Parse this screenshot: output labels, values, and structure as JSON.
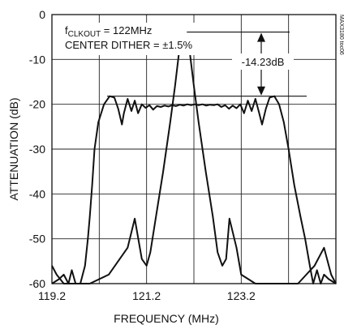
{
  "chart_data": {
    "type": "line",
    "title": "",
    "xlabel": "FREQUENCY (MHz)",
    "ylabel": "ATTENUATION (dB)",
    "xlim": [
      119.2,
      125.2
    ],
    "ylim": [
      -60,
      0
    ],
    "grid": true,
    "x_ticks": [
      "119.2",
      "121.2",
      "123.2"
    ],
    "y_ticks": [
      "0",
      "-10",
      "-20",
      "-30",
      "-40",
      "-50",
      "-60"
    ],
    "series": [
      {
        "x": [
          119.2,
          119.35,
          119.45,
          119.55,
          119.62,
          119.7,
          119.8,
          119.9,
          119.96,
          120.0,
          120.05,
          120.1,
          120.18,
          120.3,
          120.42,
          120.52,
          120.6,
          120.68,
          120.72,
          120.8,
          120.88,
          120.95,
          121.02,
          121.1,
          121.18,
          121.26,
          121.34,
          121.42,
          121.5,
          121.58,
          121.66,
          121.74,
          121.82,
          121.9,
          121.98,
          122.06,
          122.14,
          122.22,
          122.3,
          122.38,
          122.46,
          122.54,
          122.62,
          122.7,
          122.78,
          122.86,
          122.94,
          123.02,
          123.1,
          123.18,
          123.26,
          123.34,
          123.42,
          123.5,
          123.58,
          123.64,
          123.72,
          123.8,
          123.9,
          124.0,
          124.1,
          124.2,
          124.32,
          124.45,
          124.55,
          124.65,
          124.72,
          124.8,
          124.88,
          124.95,
          125.05,
          125.2
        ],
        "y": [
          -60,
          -59,
          -58,
          -60,
          -57,
          -60,
          -60,
          -56,
          -50,
          -45,
          -38,
          -30,
          -24,
          -20,
          -18.2,
          -18.5,
          -21,
          -24.5,
          -22,
          -18.8,
          -21.5,
          -19.2,
          -22,
          -20,
          -20.8,
          -20.2,
          -21.2,
          -20.4,
          -20.6,
          -20.3,
          -20.5,
          -20.2,
          -20.4,
          -20.1,
          -20.3,
          -20.0,
          -20.2,
          -20.0,
          -20.2,
          -20.0,
          -20.3,
          -20.1,
          -20.2,
          -20.0,
          -20.6,
          -20.2,
          -21.0,
          -20.3,
          -20.9,
          -20.0,
          -22,
          -19.2,
          -21.5,
          -18.8,
          -22,
          -24.5,
          -21,
          -18.5,
          -18.2,
          -20,
          -24,
          -30,
          -38,
          -45,
          -50,
          -56,
          -60,
          -57,
          -60,
          -58,
          -59,
          -60
        ]
      },
      {
        "x": [
          119.2,
          119.3,
          119.45,
          119.65,
          120.0,
          120.4,
          120.8,
          120.95,
          121.1,
          121.2,
          121.28,
          121.4,
          121.55,
          121.7,
          121.8,
          121.88,
          121.95,
          122.0,
          122.05,
          122.12,
          122.2,
          122.3,
          122.45,
          122.6,
          122.7,
          122.8,
          122.88,
          122.95,
          123.1,
          123.2,
          123.5,
          124.0,
          124.4,
          124.75,
          124.95,
          125.1,
          125.2
        ],
        "y": [
          -56,
          -58,
          -60,
          -60,
          -60,
          -58,
          -52,
          -45.5,
          -54.5,
          -56,
          -53,
          -45,
          -35,
          -24,
          -16,
          -9,
          -4,
          -3.9,
          -4,
          -9,
          -16,
          -24,
          -35,
          -45,
          -53,
          -56,
          -54.5,
          -45.5,
          -52,
          -58,
          -60,
          -60,
          -60,
          -56,
          -52,
          -58,
          -60
        ]
      }
    ],
    "annotations": [
      {
        "text_f": "f",
        "text_sub": "CLKOUT",
        "text_rest": " = 122MHz"
      },
      {
        "text": "CENTER DITHER = ±1.5%"
      },
      {
        "text": "-14.23dB"
      }
    ],
    "figure_code": "MAX3180 toc06"
  },
  "colors": {
    "line": "#111111",
    "grid": "#222222"
  }
}
